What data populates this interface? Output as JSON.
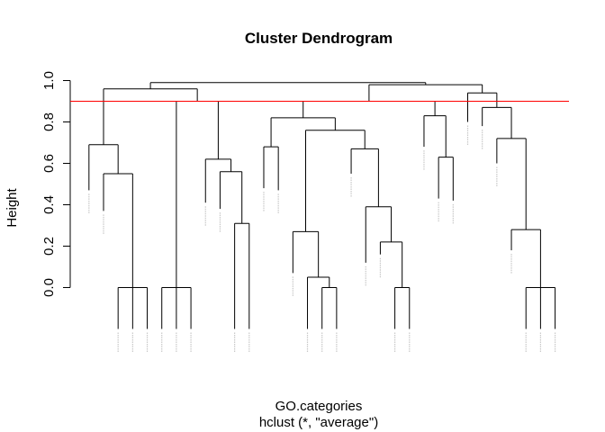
{
  "chart_data": {
    "type": "dendrogram",
    "title": "Cluster Dendrogram",
    "xlabel": "GO.categories",
    "sub": "hclust (*, \"average\")",
    "ylabel": "Height",
    "ylim": [
      0,
      1.0
    ],
    "yticks": [
      "0.0",
      "0.2",
      "0.4",
      "0.6",
      "0.8",
      "1.0"
    ],
    "cut_height": 0.9,
    "cut_color": "#ff0000",
    "leaves": [
      {
        "x": 1,
        "tip": 0.47
      },
      {
        "x": 2,
        "tip": 0.37
      },
      {
        "x": 3,
        "tip": -0.2
      },
      {
        "x": 4,
        "tip": -0.2
      },
      {
        "x": 5,
        "tip": -0.2
      },
      {
        "x": 6,
        "tip": -0.2
      },
      {
        "x": 7,
        "tip": -0.2
      },
      {
        "x": 8,
        "tip": -0.2
      },
      {
        "x": 9,
        "tip": 0.41
      },
      {
        "x": 10,
        "tip": 0.38
      },
      {
        "x": 11,
        "tip": -0.2
      },
      {
        "x": 12,
        "tip": -0.2
      },
      {
        "x": 13,
        "tip": 0.48
      },
      {
        "x": 14,
        "tip": 0.47
      },
      {
        "x": 15,
        "tip": 0.07
      },
      {
        "x": 16,
        "tip": -0.2
      },
      {
        "x": 17,
        "tip": -0.2
      },
      {
        "x": 18,
        "tip": -0.2
      },
      {
        "x": 19,
        "tip": 0.55
      },
      {
        "x": 20,
        "tip": 0.12
      },
      {
        "x": 21,
        "tip": 0.16
      },
      {
        "x": 22,
        "tip": -0.2
      },
      {
        "x": 23,
        "tip": -0.2
      },
      {
        "x": 24,
        "tip": 0.68
      },
      {
        "x": 25,
        "tip": 0.43
      },
      {
        "x": 26,
        "tip": 0.42
      },
      {
        "x": 27,
        "tip": 0.8
      },
      {
        "x": 28,
        "tip": 0.78
      },
      {
        "x": 29,
        "tip": 0.6
      },
      {
        "x": 30,
        "tip": 0.18
      },
      {
        "x": 31,
        "tip": -0.2
      },
      {
        "x": 32,
        "tip": -0.2
      },
      {
        "x": 33,
        "tip": -0.2
      }
    ],
    "merges": [
      {
        "id": "A",
        "children": [
          "L3",
          "L4",
          "L5"
        ],
        "height": 0.0
      },
      {
        "id": "B",
        "children": [
          "L2",
          "A"
        ],
        "height": 0.55
      },
      {
        "id": "C",
        "children": [
          "L1",
          "B"
        ],
        "height": 0.69
      },
      {
        "id": "D",
        "children": [
          "L6",
          "L7",
          "L8"
        ],
        "height": 0.0
      },
      {
        "id": "E",
        "children": [
          "L11",
          "L12"
        ],
        "height": 0.31
      },
      {
        "id": "F",
        "children": [
          "L10",
          "E"
        ],
        "height": 0.56
      },
      {
        "id": "G",
        "children": [
          "L9",
          "F"
        ],
        "height": 0.62
      },
      {
        "id": "H",
        "children": [
          "D",
          "G"
        ],
        "height": 0.9
      },
      {
        "id": "I",
        "children": [
          "C",
          "H"
        ],
        "height": 0.96
      },
      {
        "id": "J",
        "children": [
          "L13",
          "L14"
        ],
        "height": 0.68
      },
      {
        "id": "K",
        "children": [
          "L17",
          "L18"
        ],
        "height": 0.0
      },
      {
        "id": "L",
        "children": [
          "L16",
          "K"
        ],
        "height": 0.05
      },
      {
        "id": "M",
        "children": [
          "L15",
          "L"
        ],
        "height": 0.27
      },
      {
        "id": "N",
        "children": [
          "L22",
          "L23"
        ],
        "height": 0.0
      },
      {
        "id": "O",
        "children": [
          "L21",
          "N"
        ],
        "height": 0.22
      },
      {
        "id": "P",
        "children": [
          "L20",
          "O"
        ],
        "height": 0.39
      },
      {
        "id": "Q",
        "children": [
          "L19",
          "P"
        ],
        "height": 0.67
      },
      {
        "id": "R",
        "children": [
          "M",
          "Q"
        ],
        "height": 0.76
      },
      {
        "id": "S",
        "children": [
          "J",
          "R"
        ],
        "height": 0.82
      },
      {
        "id": "T",
        "children": [
          "L25",
          "L26"
        ],
        "height": 0.63
      },
      {
        "id": "U",
        "children": [
          "L24",
          "T"
        ],
        "height": 0.83
      },
      {
        "id": "V",
        "children": [
          "S",
          "U"
        ],
        "height": 0.9
      },
      {
        "id": "W",
        "children": [
          "L31",
          "L32",
          "L33"
        ],
        "height": 0.0
      },
      {
        "id": "X",
        "children": [
          "L30",
          "W"
        ],
        "height": 0.28
      },
      {
        "id": "Y",
        "children": [
          "L29",
          "X"
        ],
        "height": 0.72
      },
      {
        "id": "Z",
        "children": [
          "L28",
          "Y"
        ],
        "height": 0.87
      },
      {
        "id": "AA",
        "children": [
          "L27",
          "Z"
        ],
        "height": 0.94
      },
      {
        "id": "AB",
        "children": [
          "V",
          "AA"
        ],
        "height": 0.98
      },
      {
        "id": "ROOT",
        "children": [
          "I",
          "AB"
        ],
        "height": 0.99
      }
    ]
  }
}
